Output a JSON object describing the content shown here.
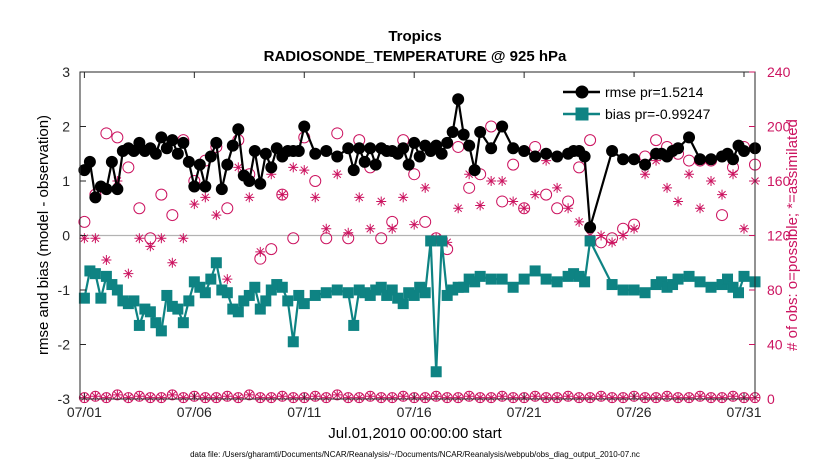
{
  "chart_data": {
    "type": "line",
    "title": "Tropics",
    "subtitle": "RADIOSONDE_TEMPERATURE @ 925 hPa",
    "xlabel": "Jul.01,2010 00:00:00 start",
    "ylabel": "rmse and bias (model - observation)",
    "ylabel_right": "# of obs: o=possible; *=assimilated",
    "footer": "data file: /Users/gharamti/Documents/NCAR/Reanalysis/~/Documents/NCAR/Reanalysis/webpub/obs_diag_output_2010-07.nc",
    "xlim": [
      0.8,
      31.5
    ],
    "ylim": [
      -3,
      3
    ],
    "ylim_right": [
      0,
      240
    ],
    "x_ticks": [
      1,
      6,
      11,
      16,
      21,
      26,
      31
    ],
    "x_tick_labels": [
      "07/01",
      "07/06",
      "07/11",
      "07/16",
      "07/21",
      "07/26",
      "07/31"
    ],
    "y_ticks": [
      -3,
      -2,
      -1,
      0,
      1,
      2,
      3
    ],
    "y_tick_labels": [
      "-3",
      "-2",
      "-1",
      "0",
      "1",
      "2",
      "3"
    ],
    "y_ticks_right": [
      0,
      40,
      80,
      120,
      160,
      200,
      240
    ],
    "y_tick_labels_right": [
      "0",
      "40",
      "80",
      "120",
      "160",
      "200",
      "240"
    ],
    "colors": {
      "rmse": "#000000",
      "bias": "#0e8383",
      "obs": "#cc1460"
    },
    "series": [
      {
        "name": "rmse",
        "legend": "rmse pr=1.5214",
        "x": [
          1.0,
          1.25,
          1.5,
          1.75,
          2.0,
          2.25,
          2.5,
          2.75,
          3.0,
          3.25,
          3.5,
          3.75,
          4.0,
          4.25,
          4.5,
          4.75,
          5.0,
          5.25,
          5.5,
          5.75,
          6.0,
          6.25,
          6.5,
          6.75,
          7.0,
          7.25,
          7.5,
          7.75,
          8.0,
          8.25,
          8.5,
          8.75,
          9.0,
          9.25,
          9.5,
          9.75,
          10.0,
          10.25,
          10.5,
          10.75,
          11.0,
          11.5,
          12.0,
          12.5,
          13.0,
          13.25,
          13.5,
          13.75,
          14.0,
          14.25,
          14.5,
          14.75,
          15.0,
          15.25,
          15.5,
          15.75,
          16.0,
          16.25,
          16.5,
          16.75,
          17.0,
          17.25,
          17.5,
          17.75,
          18.0,
          18.25,
          18.5,
          18.75,
          19.0,
          19.5,
          20.0,
          20.5,
          21.0,
          21.5,
          22.0,
          22.5,
          23.0,
          23.25,
          23.5,
          23.75,
          24.0,
          25.0,
          25.5,
          26.0,
          26.5,
          27.0,
          27.25,
          27.5,
          27.75,
          28.0,
          28.5,
          29.0,
          29.5,
          30.0,
          30.25,
          30.5,
          30.75,
          31.0,
          31.5
        ],
        "values": [
          1.2,
          1.35,
          0.7,
          0.9,
          0.85,
          1.35,
          0.85,
          1.55,
          1.6,
          1.55,
          1.7,
          1.55,
          1.6,
          1.5,
          1.8,
          1.6,
          1.75,
          1.5,
          1.7,
          1.35,
          0.9,
          1.3,
          0.9,
          1.45,
          1.7,
          0.85,
          1.3,
          1.65,
          1.95,
          1.1,
          1.0,
          1.55,
          0.95,
          1.5,
          1.25,
          1.6,
          1.45,
          1.55,
          1.55,
          1.55,
          2.0,
          1.5,
          1.55,
          1.45,
          1.6,
          1.2,
          1.6,
          1.35,
          1.6,
          1.3,
          1.6,
          1.55,
          1.55,
          1.5,
          1.6,
          1.3,
          1.7,
          1.45,
          1.65,
          1.55,
          1.65,
          1.5,
          1.7,
          1.9,
          2.5,
          1.85,
          1.65,
          1.2,
          1.9,
          1.6,
          2.0,
          1.6,
          1.55,
          1.45,
          1.5,
          1.45,
          1.5,
          1.55,
          1.55,
          1.45,
          0.15,
          1.55,
          1.4,
          1.4,
          1.3,
          1.5,
          1.5,
          1.45,
          1.55,
          1.6,
          1.8,
          1.4,
          1.4,
          1.45,
          1.5,
          1.4,
          1.65,
          1.55,
          1.6
        ]
      },
      {
        "name": "bias",
        "legend": "bias pr=-0.99247",
        "x": [
          1.0,
          1.25,
          1.5,
          1.75,
          2.0,
          2.25,
          2.5,
          2.75,
          3.0,
          3.25,
          3.5,
          3.75,
          4.0,
          4.25,
          4.5,
          4.75,
          5.0,
          5.25,
          5.5,
          5.75,
          6.0,
          6.25,
          6.5,
          6.75,
          7.0,
          7.25,
          7.5,
          7.75,
          8.0,
          8.25,
          8.5,
          8.75,
          9.0,
          9.25,
          9.5,
          9.75,
          10.0,
          10.25,
          10.5,
          10.75,
          11.0,
          11.5,
          12.0,
          12.5,
          13.0,
          13.25,
          13.5,
          13.75,
          14.0,
          14.25,
          14.5,
          14.75,
          15.0,
          15.25,
          15.5,
          15.75,
          16.0,
          16.25,
          16.5,
          16.75,
          17.0,
          17.25,
          17.5,
          17.75,
          18.0,
          18.25,
          18.5,
          18.75,
          19.0,
          19.5,
          20.0,
          20.5,
          21.0,
          21.5,
          22.0,
          22.5,
          23.0,
          23.25,
          23.5,
          23.75,
          24.0,
          25.0,
          25.5,
          26.0,
          26.5,
          27.0,
          27.25,
          27.5,
          27.75,
          28.0,
          28.5,
          29.0,
          29.5,
          30.0,
          30.25,
          30.5,
          30.75,
          31.0,
          31.5
        ],
        "values": [
          -1.15,
          -0.65,
          -0.7,
          -1.15,
          -0.75,
          -0.9,
          -1.0,
          -1.2,
          -1.25,
          -1.2,
          -1.65,
          -1.35,
          -1.4,
          -1.6,
          -1.75,
          -1.1,
          -1.3,
          -1.35,
          -1.6,
          -1.2,
          -0.85,
          -0.95,
          -1.05,
          -0.8,
          -0.5,
          -1.0,
          -1.05,
          -1.35,
          -1.4,
          -1.2,
          -1.1,
          -0.95,
          -1.35,
          -1.2,
          -1.0,
          -0.9,
          -0.95,
          -1.2,
          -1.95,
          -1.1,
          -1.25,
          -1.1,
          -1.05,
          -1.0,
          -1.05,
          -1.65,
          -1.0,
          -1.05,
          -1.1,
          -1.0,
          -0.95,
          -1.1,
          -1.0,
          -1.15,
          -1.25,
          -1.05,
          -1.1,
          -0.95,
          -1.05,
          -0.1,
          -2.5,
          -0.1,
          -1.1,
          -1.0,
          -0.95,
          -0.95,
          -0.8,
          -0.85,
          -0.75,
          -0.8,
          -0.8,
          -0.95,
          -0.8,
          -0.65,
          -0.8,
          -0.85,
          -0.75,
          -0.7,
          -0.75,
          -0.85,
          -0.1,
          -0.9,
          -1.0,
          -1.0,
          -1.05,
          -0.9,
          -0.85,
          -0.95,
          -0.9,
          -0.8,
          -0.75,
          -0.85,
          -0.95,
          -0.9,
          -0.8,
          -0.95,
          -1.05,
          -0.75,
          -0.85
        ]
      },
      {
        "name": "obs possible",
        "marker": "circle",
        "x": [
          1.0,
          1.5,
          2.0,
          2.5,
          3.0,
          3.5,
          4.0,
          4.5,
          5.0,
          5.5,
          6.0,
          6.5,
          7.0,
          7.5,
          8.0,
          8.5,
          9.0,
          9.5,
          10.0,
          10.5,
          11.0,
          11.5,
          12.0,
          12.5,
          13.0,
          13.5,
          14.0,
          14.5,
          15.0,
          15.5,
          16.0,
          16.5,
          17.0,
          17.5,
          18.0,
          18.5,
          19.0,
          19.5,
          20.0,
          20.5,
          21.0,
          21.5,
          22.0,
          22.5,
          23.0,
          23.5,
          24.0,
          24.5,
          25.0,
          25.5,
          26.0,
          26.5,
          27.0,
          27.5,
          28.0,
          28.5,
          29.0,
          29.5,
          30.0,
          30.5,
          31.0,
          31.5
        ],
        "values": [
          130,
          150,
          195,
          192,
          170,
          140,
          118,
          150,
          135,
          190,
          160,
          175,
          185,
          140,
          190,
          165,
          103,
          110,
          150,
          118,
          192,
          160,
          118,
          195,
          118,
          190,
          170,
          118,
          130,
          190,
          165,
          130,
          118,
          110,
          185,
          155,
          165,
          200,
          145,
          172,
          140,
          185,
          150,
          140,
          145,
          170,
          190,
          115,
          118,
          125,
          128,
          178,
          190,
          185,
          180,
          175,
          175,
          175,
          135,
          170,
          185,
          172
        ]
      },
      {
        "name": "obs assimilated",
        "marker": "star",
        "x": [
          1.0,
          1.5,
          2.0,
          2.5,
          3.0,
          3.5,
          4.0,
          4.5,
          5.0,
          5.5,
          6.0,
          6.5,
          7.0,
          7.5,
          8.0,
          8.5,
          9.0,
          9.5,
          10.0,
          10.5,
          11.0,
          11.5,
          12.0,
          12.5,
          13.0,
          13.5,
          14.0,
          14.5,
          15.0,
          15.5,
          16.0,
          16.5,
          17.0,
          17.5,
          18.0,
          18.5,
          19.0,
          19.5,
          20.0,
          20.5,
          21.0,
          21.5,
          22.0,
          22.5,
          23.0,
          23.5,
          24.0,
          24.5,
          25.0,
          25.5,
          26.0,
          26.5,
          27.0,
          27.5,
          28.0,
          28.5,
          29.0,
          29.5,
          30.0,
          30.5,
          31.0,
          31.5
        ],
        "values": [
          118,
          118,
          102,
          160,
          92,
          118,
          112,
          118,
          100,
          118,
          143,
          148,
          135,
          88,
          170,
          148,
          108,
          165,
          150,
          170,
          168,
          148,
          125,
          165,
          122,
          148,
          125,
          145,
          125,
          148,
          128,
          155,
          118,
          115,
          140,
          165,
          142,
          160,
          160,
          145,
          140,
          150,
          175,
          155,
          140,
          130,
          120,
          120,
          115,
          120,
          125,
          165,
          175,
          155,
          145,
          165,
          140,
          160,
          150,
          165,
          125,
          160
        ]
      },
      {
        "name": "obs baseline",
        "marker": "circle-star",
        "x": [
          1.0,
          1.5,
          2.0,
          2.5,
          3.0,
          3.5,
          4.0,
          4.5,
          5.0,
          5.5,
          6.0,
          6.5,
          7.0,
          7.5,
          8.0,
          8.5,
          9.0,
          9.5,
          10.0,
          10.5,
          11.0,
          11.5,
          12.0,
          12.5,
          13.0,
          13.5,
          14.0,
          14.5,
          15.0,
          15.5,
          16.0,
          16.5,
          17.0,
          17.5,
          18.0,
          18.5,
          19.0,
          19.5,
          20.0,
          20.5,
          21.0,
          21.5,
          22.0,
          22.5,
          23.0,
          23.5,
          24.0,
          24.5,
          25.0,
          25.5,
          26.0,
          26.5,
          27.0,
          27.5,
          28.0,
          28.5,
          29.0,
          29.5,
          30.0,
          30.5,
          31.0,
          31.5
        ],
        "values": [
          1,
          2,
          1,
          3,
          1,
          2,
          1,
          1,
          3,
          1,
          2,
          1,
          1,
          2,
          1,
          3,
          1,
          1,
          2,
          1,
          1,
          2,
          1,
          3,
          1,
          1,
          2,
          1,
          1,
          2,
          1,
          1,
          2,
          1,
          1,
          2,
          1,
          1,
          2,
          1,
          1,
          2,
          1,
          1,
          2,
          1,
          1,
          2,
          1,
          1,
          2,
          1,
          1,
          2,
          1,
          1,
          2,
          1,
          1,
          2,
          1,
          1
        ]
      }
    ]
  }
}
